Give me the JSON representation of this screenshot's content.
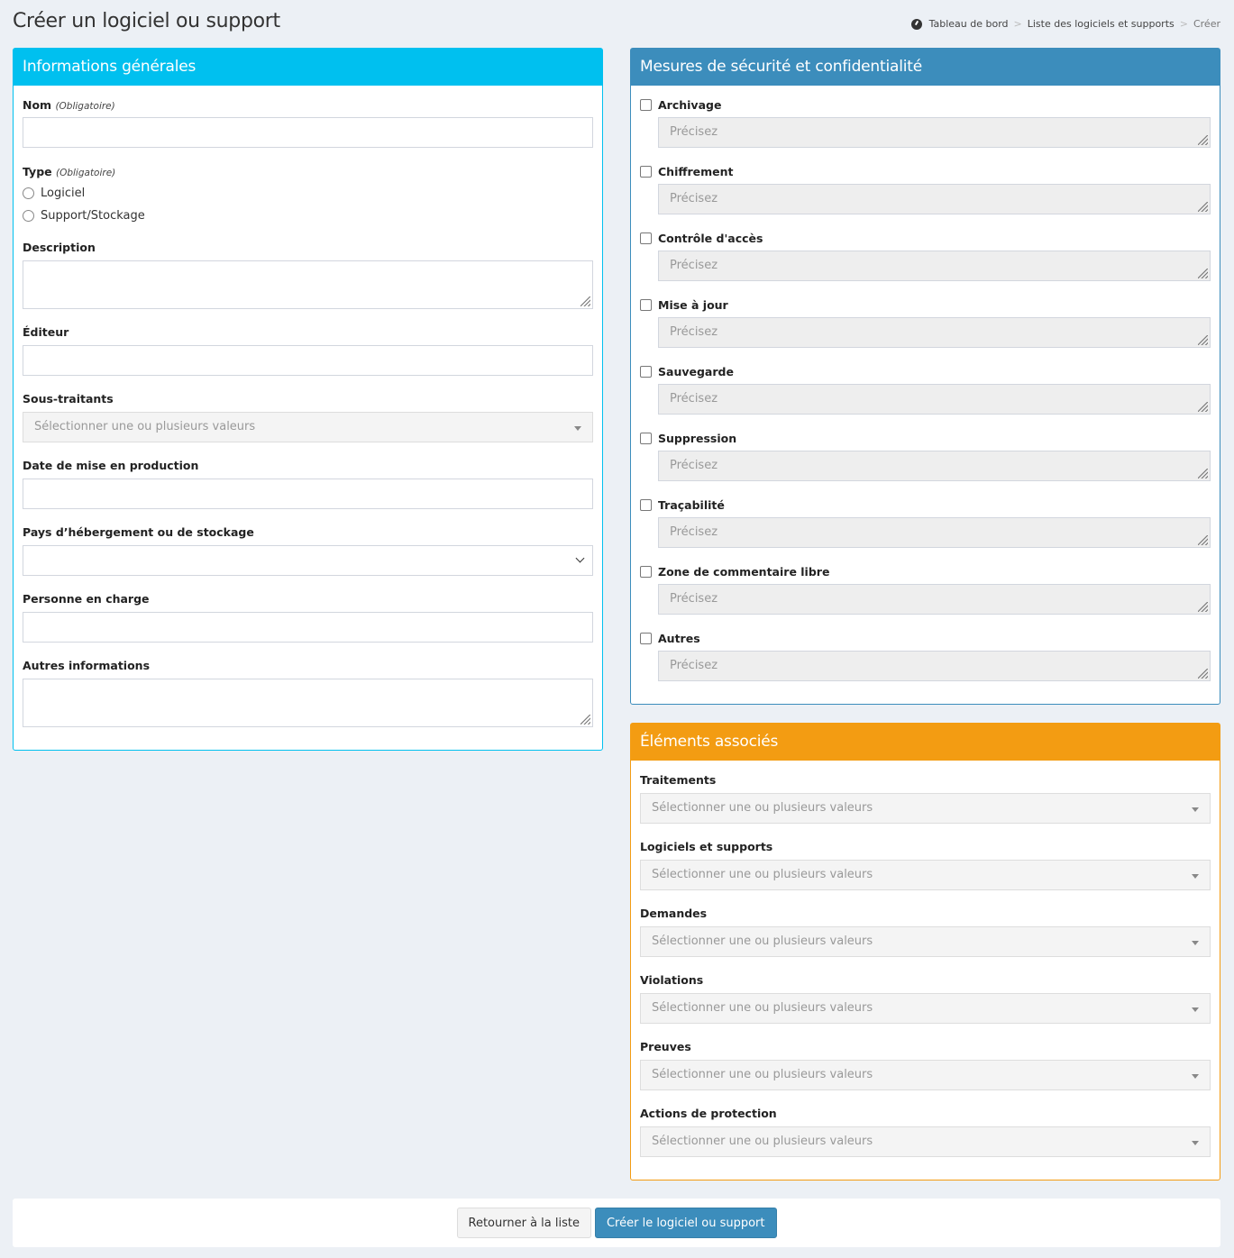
{
  "page": {
    "title": "Créer un logiciel ou support"
  },
  "breadcrumb": {
    "home": "Tableau de bord",
    "list": "Liste des logiciels et supports",
    "current": "Créer",
    "separator": ">"
  },
  "general": {
    "title": "Informations générales",
    "color": "#00c0ef",
    "nom": "Nom",
    "required": "(Obligatoire)",
    "type": "Type",
    "radios": [
      "Logiciel",
      "Support/Stockage"
    ],
    "description": "Description",
    "editeur": "Éditeur",
    "sous_traitants": "Sous-traitants",
    "select_placeholder": "Sélectionner une ou plusieurs valeurs",
    "date": "Date de mise en production",
    "pays": "Pays d’hébergement ou de stockage",
    "personne": "Personne en charge",
    "autres": "Autres informations"
  },
  "security": {
    "title": "Mesures de sécurité et confidentialité",
    "color": "#3c8dbc",
    "placeholder": "Précisez",
    "items": [
      "Archivage",
      "Chiffrement",
      "Contrôle d'accès",
      "Mise à jour",
      "Sauvegarde",
      "Suppression",
      "Traçabilité",
      "Zone de commentaire libre",
      "Autres"
    ]
  },
  "associated": {
    "title": "Éléments associés",
    "color": "#f39c12",
    "placeholder": "Sélectionner une ou plusieurs valeurs",
    "items": [
      "Traitements",
      "Logiciels et supports",
      "Demandes",
      "Violations",
      "Preuves",
      "Actions de protection"
    ]
  },
  "footer": {
    "back": "Retourner à la liste",
    "create": "Créer le logiciel ou support"
  }
}
